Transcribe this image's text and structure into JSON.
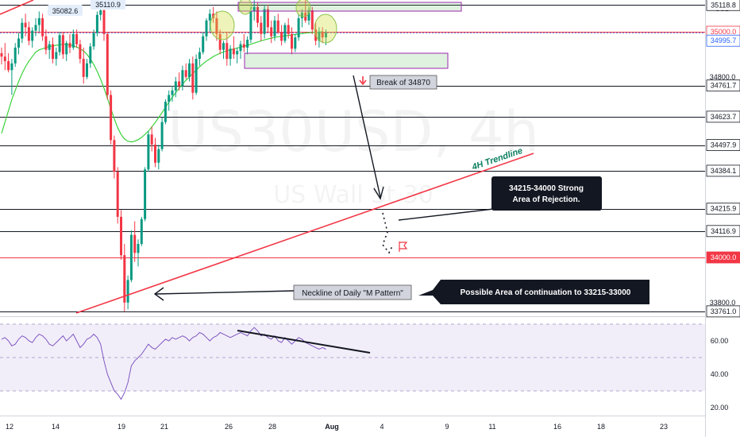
{
  "chart_data": [
    {
      "type": "candlestick",
      "symbol": "US30USD",
      "interval": "4h",
      "watermark_title": "US30USD, 4h",
      "watermark_subtitle": "US Wall St 30",
      "currency": "USD",
      "x_ticks": [
        "12",
        "14",
        "19",
        "21",
        "26",
        "28",
        "Aug",
        "4",
        "9",
        "11",
        "16",
        "18",
        "23"
      ],
      "price_ticks": [
        34800,
        33800
      ],
      "y_range": [
        33720,
        35200
      ],
      "levels": [
        {
          "label": "35118.8",
          "value": 35118.8,
          "color": "#131722",
          "tag_bg": "#ffffff",
          "tag_text": "#131722"
        },
        {
          "label": "35000.0",
          "value": 35000.0,
          "color": "#f23645",
          "tag_bg": "#ffffff",
          "tag_text": "#f23645"
        },
        {
          "label": "34995.7",
          "value": 34995.7,
          "color": "#2962ff",
          "tag_bg": "#ffffff",
          "tag_text": "#2962ff"
        },
        {
          "label": "34761.7",
          "value": 34761.7,
          "color": "#131722",
          "tag_bg": "#ffffff",
          "tag_text": "#131722"
        },
        {
          "label": "34623.7",
          "value": 34623.7,
          "color": "#131722",
          "tag_bg": "#ffffff",
          "tag_text": "#131722"
        },
        {
          "label": "34497.9",
          "value": 34497.9,
          "color": "#131722",
          "tag_bg": "#ffffff",
          "tag_text": "#131722"
        },
        {
          "label": "34384.1",
          "value": 34384.1,
          "color": "#131722",
          "tag_bg": "#ffffff",
          "tag_text": "#131722"
        },
        {
          "label": "34215.9",
          "value": 34215.9,
          "color": "#131722",
          "tag_bg": "#ffffff",
          "tag_text": "#131722"
        },
        {
          "label": "34116.9",
          "value": 34116.9,
          "color": "#131722",
          "tag_bg": "#ffffff",
          "tag_text": "#131722"
        },
        {
          "label": "34000.0",
          "value": 34000.0,
          "color": "#f23645",
          "tag_bg": "#f23645",
          "tag_text": "#ffffff"
        },
        {
          "label": "33761.0",
          "value": 33761.0,
          "color": "#131722",
          "tag_bg": "#ffffff",
          "tag_text": "#131722"
        }
      ],
      "price_flags": [
        "35082.6",
        "35110.9"
      ],
      "annotations": {
        "break": "Break of 34870",
        "trendline": "4H Trendline",
        "rejection_line1": "34215-34000 Strong",
        "rejection_line2": "Area of Rejection.",
        "neckline": "Neckline of Daily \"M Pattern\"",
        "continuation": "Possible Area of continuation to 33215-33000"
      },
      "candles": [
        {
          "o": 34905,
          "h": 34930,
          "l": 34855,
          "c": 34890
        },
        {
          "o": 34890,
          "h": 34950,
          "l": 34830,
          "c": 34870
        },
        {
          "o": 34870,
          "h": 34905,
          "l": 34820,
          "c": 34830
        },
        {
          "o": 34830,
          "h": 34880,
          "l": 34720,
          "c": 34860
        },
        {
          "o": 34860,
          "h": 34950,
          "l": 34845,
          "c": 34930
        },
        {
          "o": 34930,
          "h": 34995,
          "l": 34900,
          "c": 34970
        },
        {
          "o": 34970,
          "h": 35060,
          "l": 34950,
          "c": 35040
        },
        {
          "o": 35040,
          "h": 35080,
          "l": 34980,
          "c": 35020
        },
        {
          "o": 35020,
          "h": 35045,
          "l": 34940,
          "c": 34960
        },
        {
          "o": 34960,
          "h": 35020,
          "l": 34930,
          "c": 35005
        },
        {
          "o": 35005,
          "h": 35060,
          "l": 34980,
          "c": 35030
        },
        {
          "o": 35030,
          "h": 35090,
          "l": 35000,
          "c": 35060
        },
        {
          "o": 35060,
          "h": 35080,
          "l": 34960,
          "c": 34980
        },
        {
          "o": 34980,
          "h": 35010,
          "l": 34900,
          "c": 34920
        },
        {
          "o": 34920,
          "h": 34960,
          "l": 34880,
          "c": 34945
        },
        {
          "o": 34945,
          "h": 34975,
          "l": 34860,
          "c": 34880
        },
        {
          "o": 34880,
          "h": 34930,
          "l": 34850,
          "c": 34910
        },
        {
          "o": 34910,
          "h": 35000,
          "l": 34895,
          "c": 34985
        },
        {
          "o": 34985,
          "h": 35000,
          "l": 34880,
          "c": 34900
        },
        {
          "o": 34900,
          "h": 34960,
          "l": 34870,
          "c": 34950
        },
        {
          "o": 34950,
          "h": 34990,
          "l": 34905,
          "c": 34930
        },
        {
          "o": 34930,
          "h": 35010,
          "l": 34920,
          "c": 34990
        },
        {
          "o": 34990,
          "h": 35010,
          "l": 34930,
          "c": 34945
        },
        {
          "o": 34945,
          "h": 34965,
          "l": 34860,
          "c": 34880
        },
        {
          "o": 34880,
          "h": 34930,
          "l": 34770,
          "c": 34800
        },
        {
          "o": 34800,
          "h": 34880,
          "l": 34790,
          "c": 34860
        },
        {
          "o": 34860,
          "h": 34950,
          "l": 34840,
          "c": 34935
        },
        {
          "o": 34935,
          "h": 35010,
          "l": 34920,
          "c": 34995
        },
        {
          "o": 34995,
          "h": 35090,
          "l": 34980,
          "c": 35075
        },
        {
          "o": 35075,
          "h": 35120,
          "l": 35050,
          "c": 35095
        },
        {
          "o": 35095,
          "h": 35110,
          "l": 34960,
          "c": 34990
        },
        {
          "o": 34990,
          "h": 35000,
          "l": 34700,
          "c": 34720
        },
        {
          "o": 34720,
          "h": 34740,
          "l": 34500,
          "c": 34520
        },
        {
          "o": 34520,
          "h": 34540,
          "l": 34350,
          "c": 34380
        },
        {
          "o": 34380,
          "h": 34400,
          "l": 34150,
          "c": 34180
        },
        {
          "o": 34180,
          "h": 34210,
          "l": 33990,
          "c": 34010
        },
        {
          "o": 34010,
          "h": 34060,
          "l": 33761,
          "c": 33800
        },
        {
          "o": 33800,
          "h": 33920,
          "l": 33770,
          "c": 33900
        },
        {
          "o": 33900,
          "h": 34120,
          "l": 33890,
          "c": 34100
        },
        {
          "o": 34100,
          "h": 34160,
          "l": 33980,
          "c": 34020
        },
        {
          "o": 34020,
          "h": 34080,
          "l": 33960,
          "c": 34060
        },
        {
          "o": 34060,
          "h": 34180,
          "l": 34050,
          "c": 34170
        },
        {
          "o": 34170,
          "h": 34400,
          "l": 34160,
          "c": 34390
        },
        {
          "o": 34390,
          "h": 34560,
          "l": 34380,
          "c": 34545
        },
        {
          "o": 34545,
          "h": 34580,
          "l": 34470,
          "c": 34500
        },
        {
          "o": 34500,
          "h": 34530,
          "l": 34400,
          "c": 34420
        },
        {
          "o": 34420,
          "h": 34500,
          "l": 34390,
          "c": 34480
        },
        {
          "o": 34480,
          "h": 34620,
          "l": 34470,
          "c": 34600
        },
        {
          "o": 34600,
          "h": 34700,
          "l": 34590,
          "c": 34690
        },
        {
          "o": 34690,
          "h": 34740,
          "l": 34650,
          "c": 34720
        },
        {
          "o": 34720,
          "h": 34760,
          "l": 34690,
          "c": 34740
        },
        {
          "o": 34740,
          "h": 34800,
          "l": 34710,
          "c": 34780
        },
        {
          "o": 34780,
          "h": 34820,
          "l": 34740,
          "c": 34760
        },
        {
          "o": 34760,
          "h": 34850,
          "l": 34740,
          "c": 34830
        },
        {
          "o": 34830,
          "h": 34860,
          "l": 34790,
          "c": 34800
        },
        {
          "o": 34800,
          "h": 34880,
          "l": 34780,
          "c": 34860
        },
        {
          "o": 34860,
          "h": 34890,
          "l": 34700,
          "c": 34730
        },
        {
          "o": 34730,
          "h": 34900,
          "l": 34720,
          "c": 34880
        },
        {
          "o": 34880,
          "h": 34930,
          "l": 34850,
          "c": 34910
        },
        {
          "o": 34910,
          "h": 35000,
          "l": 34900,
          "c": 34980
        },
        {
          "o": 34980,
          "h": 35060,
          "l": 34960,
          "c": 35050
        },
        {
          "o": 35050,
          "h": 35100,
          "l": 35000,
          "c": 35080
        },
        {
          "o": 35080,
          "h": 35110,
          "l": 35040,
          "c": 35060
        },
        {
          "o": 35060,
          "h": 35090,
          "l": 34960,
          "c": 34990
        },
        {
          "o": 34990,
          "h": 35010,
          "l": 34900,
          "c": 34920
        },
        {
          "o": 34920,
          "h": 34960,
          "l": 34880,
          "c": 34950
        },
        {
          "o": 34950,
          "h": 35000,
          "l": 34850,
          "c": 34880
        },
        {
          "o": 34880,
          "h": 34940,
          "l": 34850,
          "c": 34925
        },
        {
          "o": 34925,
          "h": 34980,
          "l": 34880,
          "c": 34900
        },
        {
          "o": 34900,
          "h": 34930,
          "l": 34860,
          "c": 34915
        },
        {
          "o": 34915,
          "h": 34960,
          "l": 34880,
          "c": 34945
        },
        {
          "o": 34945,
          "h": 34990,
          "l": 34910,
          "c": 34930
        },
        {
          "o": 34930,
          "h": 34980,
          "l": 34900,
          "c": 34965
        },
        {
          "o": 34965,
          "h": 35110,
          "l": 34950,
          "c": 35090
        },
        {
          "o": 35090,
          "h": 35140,
          "l": 35050,
          "c": 35110
        },
        {
          "o": 35110,
          "h": 35130,
          "l": 35020,
          "c": 35040
        },
        {
          "o": 35040,
          "h": 35070,
          "l": 34960,
          "c": 34990
        },
        {
          "o": 34990,
          "h": 35120,
          "l": 34970,
          "c": 35100
        },
        {
          "o": 35100,
          "h": 35120,
          "l": 35000,
          "c": 35020
        },
        {
          "o": 35020,
          "h": 35050,
          "l": 34950,
          "c": 34980
        },
        {
          "o": 34980,
          "h": 35070,
          "l": 34960,
          "c": 35050
        },
        {
          "o": 35050,
          "h": 35080,
          "l": 34990,
          "c": 35000
        },
        {
          "o": 35000,
          "h": 35030,
          "l": 34940,
          "c": 34960
        },
        {
          "o": 34960,
          "h": 35040,
          "l": 34950,
          "c": 35030
        },
        {
          "o": 35030,
          "h": 35060,
          "l": 34970,
          "c": 34990
        },
        {
          "o": 34990,
          "h": 35020,
          "l": 34900,
          "c": 34925
        },
        {
          "o": 34925,
          "h": 34990,
          "l": 34910,
          "c": 34975
        },
        {
          "o": 34975,
          "h": 35080,
          "l": 34960,
          "c": 35060
        },
        {
          "o": 35060,
          "h": 35100,
          "l": 35020,
          "c": 35085
        },
        {
          "o": 35085,
          "h": 35140,
          "l": 35040,
          "c": 35050
        },
        {
          "o": 35050,
          "h": 35110,
          "l": 35030,
          "c": 35095
        },
        {
          "o": 35095,
          "h": 35110,
          "l": 34990,
          "c": 35010
        },
        {
          "o": 35010,
          "h": 35040,
          "l": 34940,
          "c": 34960
        },
        {
          "o": 34960,
          "h": 35020,
          "l": 34930,
          "c": 35000
        },
        {
          "o": 35000,
          "h": 35020,
          "l": 34950,
          "c": 34975
        },
        {
          "o": 34975,
          "h": 35010,
          "l": 34940,
          "c": 34995
        }
      ],
      "ma": [
        34550,
        34600,
        34650,
        34700,
        34740,
        34780,
        34815,
        34845,
        34870,
        34890,
        34910,
        34920,
        34925,
        34930,
        34935,
        34938,
        34940,
        34942,
        34945,
        34944,
        34942,
        34938,
        34932,
        34925,
        34915,
        34900,
        34880,
        34855,
        34825,
        34790,
        34750,
        34705,
        34660,
        34615,
        34575,
        34545,
        34525,
        34515,
        34512,
        34515,
        34522,
        34532,
        34545,
        34560,
        34578,
        34598,
        34620,
        34642,
        34665,
        34688,
        34710,
        34730,
        34750,
        34768,
        34785,
        34800,
        34815,
        34830,
        34845,
        34858,
        34870,
        34880,
        34890,
        34898,
        34905,
        34911,
        34916,
        34920,
        34924,
        34928,
        34932,
        34936,
        34940,
        34945,
        34950,
        34955,
        34960,
        34964,
        34968,
        34972,
        34975,
        34978,
        34980,
        34982,
        34984,
        34986,
        34988,
        34990,
        34992,
        34994,
        34996,
        34997,
        34998,
        34999,
        35000
      ]
    },
    {
      "type": "line",
      "indicator": "RSI",
      "y_ticks": [
        "60.00",
        "40.00",
        "20.00"
      ],
      "band": [
        70,
        30
      ],
      "values": [
        61,
        62,
        60,
        57,
        58,
        61,
        63,
        62,
        60,
        59,
        62,
        64,
        63,
        61,
        58,
        57,
        59,
        61,
        63,
        60,
        62,
        64,
        60,
        56,
        58,
        61,
        62,
        64,
        62,
        58,
        48,
        40,
        35,
        30,
        28,
        25,
        29,
        35,
        45,
        48,
        50,
        52,
        55,
        58,
        56,
        55,
        57,
        59,
        61,
        60,
        62,
        61,
        62,
        63,
        62,
        60,
        62,
        63,
        65,
        64,
        62,
        60,
        62,
        63,
        65,
        64,
        63,
        62,
        63,
        64,
        65,
        64,
        63,
        66,
        68,
        66,
        63,
        64,
        62,
        61,
        63,
        60,
        59,
        62,
        60,
        58,
        60,
        62,
        61,
        59,
        58,
        57,
        56,
        55,
        56,
        55
      ]
    }
  ]
}
